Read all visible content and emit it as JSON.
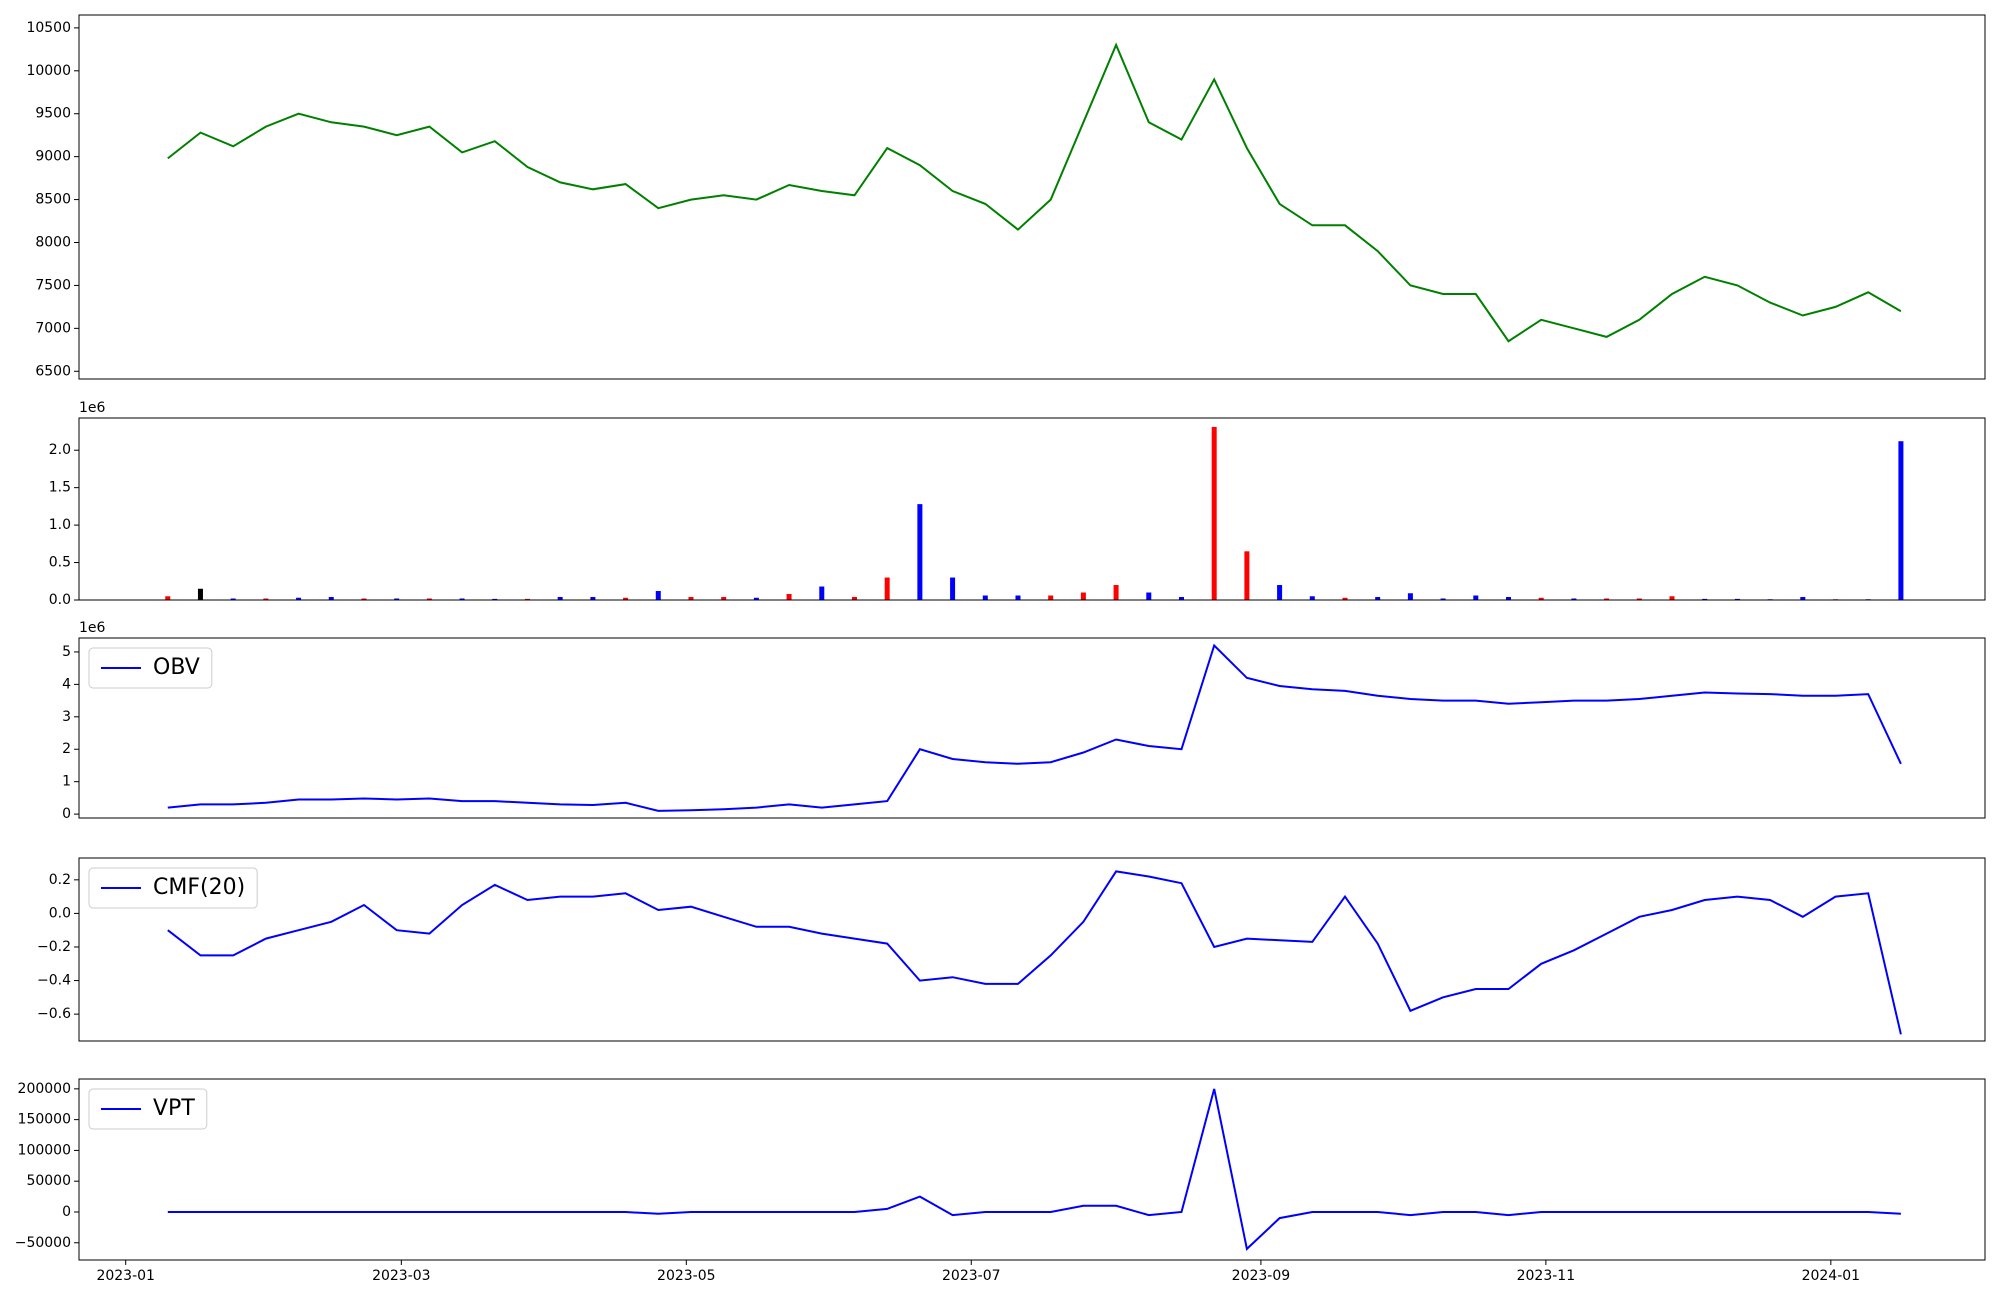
{
  "chart_data": [
    {
      "type": "line",
      "color": "green",
      "x": [
        "2023-01-10",
        "2023-01-17",
        "2023-01-24",
        "2023-01-31",
        "2023-02-07",
        "2023-02-14",
        "2023-02-21",
        "2023-02-28",
        "2023-03-07",
        "2023-03-14",
        "2023-03-21",
        "2023-03-28",
        "2023-04-04",
        "2023-04-11",
        "2023-04-18",
        "2023-04-25",
        "2023-05-02",
        "2023-05-09",
        "2023-05-16",
        "2023-05-23",
        "2023-05-30",
        "2023-06-06",
        "2023-06-13",
        "2023-06-20",
        "2023-06-27",
        "2023-07-04",
        "2023-07-11",
        "2023-07-18",
        "2023-07-25",
        "2023-08-01",
        "2023-08-08",
        "2023-08-15",
        "2023-08-22",
        "2023-08-29",
        "2023-09-05",
        "2023-09-12",
        "2023-09-19",
        "2023-09-26",
        "2023-10-03",
        "2023-10-10",
        "2023-10-17",
        "2023-10-24",
        "2023-10-31",
        "2023-11-07",
        "2023-11-14",
        "2023-11-21",
        "2023-11-28",
        "2023-12-05",
        "2023-12-12",
        "2023-12-19",
        "2023-12-26",
        "2024-01-02",
        "2024-01-09",
        "2024-01-16"
      ],
      "values": [
        8980,
        9280,
        9120,
        9350,
        9500,
        9400,
        9350,
        9250,
        9350,
        9050,
        9180,
        8880,
        8700,
        8620,
        8680,
        8400,
        8500,
        8550,
        8500,
        8670,
        8600,
        8550,
        9100,
        8900,
        8600,
        8450,
        8150,
        8500,
        9400,
        10300,
        9400,
        9200,
        9900,
        9100,
        8450,
        8200,
        8200,
        7900,
        7500,
        7400,
        7400,
        6850,
        7100,
        7000,
        6900,
        7100,
        7400,
        7600,
        7500,
        7300,
        7150,
        7250,
        7420,
        7200
      ],
      "xlim": [
        "2022-12-22",
        "2024-02-03"
      ],
      "ylim": [
        6410,
        10650
      ],
      "yticks": [
        6500,
        7000,
        7500,
        8000,
        8500,
        9000,
        9500,
        10000,
        10500
      ]
    },
    {
      "type": "bar",
      "y_offset_label": "1e6",
      "x": [
        "2023-01-10",
        "2023-01-17",
        "2023-01-24",
        "2023-01-31",
        "2023-02-07",
        "2023-02-14",
        "2023-02-21",
        "2023-02-28",
        "2023-03-07",
        "2023-03-14",
        "2023-03-21",
        "2023-03-28",
        "2023-04-04",
        "2023-04-11",
        "2023-04-18",
        "2023-04-25",
        "2023-05-02",
        "2023-05-09",
        "2023-05-16",
        "2023-05-23",
        "2023-05-30",
        "2023-06-06",
        "2023-06-13",
        "2023-06-20",
        "2023-06-27",
        "2023-07-04",
        "2023-07-11",
        "2023-07-18",
        "2023-07-25",
        "2023-08-01",
        "2023-08-08",
        "2023-08-15",
        "2023-08-22",
        "2023-08-29",
        "2023-09-05",
        "2023-09-12",
        "2023-09-19",
        "2023-09-26",
        "2023-10-03",
        "2023-10-10",
        "2023-10-17",
        "2023-10-24",
        "2023-10-31",
        "2023-11-07",
        "2023-11-14",
        "2023-11-21",
        "2023-11-28",
        "2023-12-05",
        "2023-12-12",
        "2023-12-19",
        "2023-12-26",
        "2024-01-02",
        "2024-01-09",
        "2024-01-16"
      ],
      "values": [
        50000,
        150000,
        20000,
        20000,
        30000,
        40000,
        20000,
        20000,
        20000,
        20000,
        15000,
        15000,
        40000,
        40000,
        30000,
        120000,
        40000,
        40000,
        30000,
        80000,
        180000,
        40000,
        300000,
        1280000,
        300000,
        60000,
        60000,
        60000,
        100000,
        200000,
        100000,
        40000,
        2310000,
        650000,
        200000,
        50000,
        30000,
        40000,
        90000,
        20000,
        60000,
        40000,
        30000,
        20000,
        20000,
        20000,
        50000,
        15000,
        15000,
        10000,
        40000,
        10000,
        10000,
        2120000
      ],
      "colors": [
        "red",
        "black",
        "blue",
        "red",
        "blue",
        "blue",
        "red",
        "blue",
        "red",
        "blue",
        "blue",
        "red",
        "blue",
        "blue",
        "red",
        "blue",
        "red",
        "red",
        "blue",
        "red",
        "blue",
        "red",
        "red",
        "blue",
        "blue",
        "blue",
        "blue",
        "red",
        "red",
        "red",
        "blue",
        "blue",
        "red",
        "red",
        "blue",
        "blue",
        "red",
        "blue",
        "blue",
        "blue",
        "blue",
        "blue",
        "red",
        "blue",
        "red",
        "red",
        "red",
        "blue",
        "blue",
        "blue",
        "blue",
        "red",
        "blue",
        "blue"
      ],
      "xlim": [
        "2022-12-22",
        "2024-02-03"
      ],
      "ylim": [
        0,
        2430000
      ],
      "yticks": [
        {
          "value": 0,
          "label": "0.0"
        },
        {
          "value": 500000,
          "label": "0.5"
        },
        {
          "value": 1000000,
          "label": "1.0"
        },
        {
          "value": 1500000,
          "label": "1.5"
        },
        {
          "value": 2000000,
          "label": "2.0"
        }
      ]
    },
    {
      "type": "line",
      "y_offset_label": "1e6",
      "legend": "upper left",
      "x": [
        "2023-01-10",
        "2023-01-17",
        "2023-01-24",
        "2023-01-31",
        "2023-02-07",
        "2023-02-14",
        "2023-02-21",
        "2023-02-28",
        "2023-03-07",
        "2023-03-14",
        "2023-03-21",
        "2023-03-28",
        "2023-04-04",
        "2023-04-11",
        "2023-04-18",
        "2023-04-25",
        "2023-05-02",
        "2023-05-09",
        "2023-05-16",
        "2023-05-23",
        "2023-05-30",
        "2023-06-06",
        "2023-06-13",
        "2023-06-20",
        "2023-06-27",
        "2023-07-04",
        "2023-07-11",
        "2023-07-18",
        "2023-07-25",
        "2023-08-01",
        "2023-08-08",
        "2023-08-15",
        "2023-08-22",
        "2023-08-29",
        "2023-09-05",
        "2023-09-12",
        "2023-09-19",
        "2023-09-26",
        "2023-10-03",
        "2023-10-10",
        "2023-10-17",
        "2023-10-24",
        "2023-10-31",
        "2023-11-07",
        "2023-11-14",
        "2023-11-21",
        "2023-11-28",
        "2023-12-05",
        "2023-12-12",
        "2023-12-19",
        "2023-12-26",
        "2024-01-02",
        "2024-01-09",
        "2024-01-16"
      ],
      "series": [
        {
          "name": "OBV",
          "color": "blue",
          "values": [
            200000,
            300000,
            300000,
            350000,
            450000,
            450000,
            480000,
            450000,
            480000,
            400000,
            400000,
            350000,
            300000,
            280000,
            350000,
            100000,
            120000,
            150000,
            200000,
            300000,
            200000,
            300000,
            400000,
            2000000,
            1700000,
            1600000,
            1550000,
            1600000,
            1900000,
            2300000,
            2100000,
            2000000,
            5200000,
            4200000,
            3950000,
            3850000,
            3800000,
            3650000,
            3550000,
            3500000,
            3500000,
            3400000,
            3450000,
            3500000,
            3500000,
            3550000,
            3650000,
            3750000,
            3720000,
            3700000,
            3650000,
            3650000,
            3700000,
            1550000
          ]
        }
      ],
      "xlim": [
        "2022-12-22",
        "2024-02-03"
      ],
      "ylim": [
        -120000,
        5430000
      ],
      "yticks": [
        {
          "value": 0,
          "label": "0"
        },
        {
          "value": 1000000,
          "label": "1"
        },
        {
          "value": 2000000,
          "label": "2"
        },
        {
          "value": 3000000,
          "label": "3"
        },
        {
          "value": 4000000,
          "label": "4"
        },
        {
          "value": 5000000,
          "label": "5"
        }
      ]
    },
    {
      "type": "line",
      "legend": "upper left",
      "x": [
        "2023-01-10",
        "2023-01-17",
        "2023-01-24",
        "2023-01-31",
        "2023-02-07",
        "2023-02-14",
        "2023-02-21",
        "2023-02-28",
        "2023-03-07",
        "2023-03-14",
        "2023-03-21",
        "2023-03-28",
        "2023-04-04",
        "2023-04-11",
        "2023-04-18",
        "2023-04-25",
        "2023-05-02",
        "2023-05-09",
        "2023-05-16",
        "2023-05-23",
        "2023-05-30",
        "2023-06-06",
        "2023-06-13",
        "2023-06-20",
        "2023-06-27",
        "2023-07-04",
        "2023-07-11",
        "2023-07-18",
        "2023-07-25",
        "2023-08-01",
        "2023-08-08",
        "2023-08-15",
        "2023-08-22",
        "2023-08-29",
        "2023-09-05",
        "2023-09-12",
        "2023-09-19",
        "2023-09-26",
        "2023-10-03",
        "2023-10-10",
        "2023-10-17",
        "2023-10-24",
        "2023-10-31",
        "2023-11-07",
        "2023-11-14",
        "2023-11-21",
        "2023-11-28",
        "2023-12-05",
        "2023-12-12",
        "2023-12-19",
        "2023-12-26",
        "2024-01-02",
        "2024-01-09",
        "2024-01-16"
      ],
      "series": [
        {
          "name": "CMF(20)",
          "color": "blue",
          "values": [
            -0.1,
            -0.25,
            -0.25,
            -0.15,
            -0.1,
            -0.05,
            0.05,
            -0.1,
            -0.12,
            0.05,
            0.17,
            0.08,
            0.1,
            0.1,
            0.12,
            0.02,
            0.04,
            -0.02,
            -0.08,
            -0.08,
            -0.12,
            -0.15,
            -0.18,
            -0.4,
            -0.38,
            -0.42,
            -0.42,
            -0.25,
            -0.05,
            0.25,
            0.22,
            0.18,
            -0.2,
            -0.15,
            -0.16,
            -0.17,
            0.1,
            -0.18,
            -0.58,
            -0.5,
            -0.45,
            -0.45,
            -0.3,
            -0.22,
            -0.12,
            -0.02,
            0.02,
            0.08,
            0.1,
            0.08,
            -0.02,
            0.1,
            0.12,
            -0.72
          ]
        }
      ],
      "xlim": [
        "2022-12-22",
        "2024-02-03"
      ],
      "ylim": [
        -0.76,
        0.33
      ],
      "yticks": [
        {
          "value": -0.6,
          "label": "−0.6"
        },
        {
          "value": -0.4,
          "label": "−0.4"
        },
        {
          "value": -0.2,
          "label": "−0.2"
        },
        {
          "value": 0,
          "label": "0.0"
        },
        {
          "value": 0.2,
          "label": "0.2"
        }
      ]
    },
    {
      "type": "line",
      "legend": "upper left",
      "x": [
        "2023-01-10",
        "2023-01-17",
        "2023-01-24",
        "2023-01-31",
        "2023-02-07",
        "2023-02-14",
        "2023-02-21",
        "2023-02-28",
        "2023-03-07",
        "2023-03-14",
        "2023-03-21",
        "2023-03-28",
        "2023-04-04",
        "2023-04-11",
        "2023-04-18",
        "2023-04-25",
        "2023-05-02",
        "2023-05-09",
        "2023-05-16",
        "2023-05-23",
        "2023-05-30",
        "2023-06-06",
        "2023-06-13",
        "2023-06-20",
        "2023-06-27",
        "2023-07-04",
        "2023-07-11",
        "2023-07-18",
        "2023-07-25",
        "2023-08-01",
        "2023-08-08",
        "2023-08-15",
        "2023-08-22",
        "2023-08-29",
        "2023-09-05",
        "2023-09-12",
        "2023-09-19",
        "2023-09-26",
        "2023-10-03",
        "2023-10-10",
        "2023-10-17",
        "2023-10-24",
        "2023-10-31",
        "2023-11-07",
        "2023-11-14",
        "2023-11-21",
        "2023-11-28",
        "2023-12-05",
        "2023-12-12",
        "2023-12-19",
        "2023-12-26",
        "2024-01-02",
        "2024-01-09",
        "2024-01-16"
      ],
      "series": [
        {
          "name": "VPT",
          "color": "blue",
          "values": [
            0,
            0,
            0,
            0,
            0,
            0,
            0,
            0,
            0,
            0,
            0,
            0,
            0,
            0,
            0,
            -3000,
            0,
            0,
            0,
            0,
            0,
            0,
            5000,
            25000,
            -5000,
            0,
            0,
            0,
            10000,
            10000,
            -5000,
            0,
            200000,
            -60000,
            -10000,
            0,
            0,
            0,
            -5000,
            0,
            0,
            -5000,
            0,
            0,
            0,
            0,
            0,
            0,
            0,
            0,
            0,
            0,
            0,
            -3000
          ]
        }
      ],
      "xlim": [
        "2022-12-22",
        "2024-02-03"
      ],
      "ylim": [
        -78000,
        216000
      ],
      "yticks": [
        {
          "value": -50000,
          "label": "−50000"
        },
        0,
        50000,
        100000,
        150000,
        200000
      ],
      "xticks": [
        {
          "value": "2023-01-01",
          "label": "2023-01"
        },
        {
          "value": "2023-03-01",
          "label": "2023-03"
        },
        {
          "value": "2023-05-01",
          "label": "2023-05"
        },
        {
          "value": "2023-07-01",
          "label": "2023-07"
        },
        {
          "value": "2023-09-01",
          "label": "2023-09"
        },
        {
          "value": "2023-11-01",
          "label": "2023-11"
        },
        {
          "value": "2024-01-01",
          "label": "2024-01"
        }
      ]
    }
  ]
}
